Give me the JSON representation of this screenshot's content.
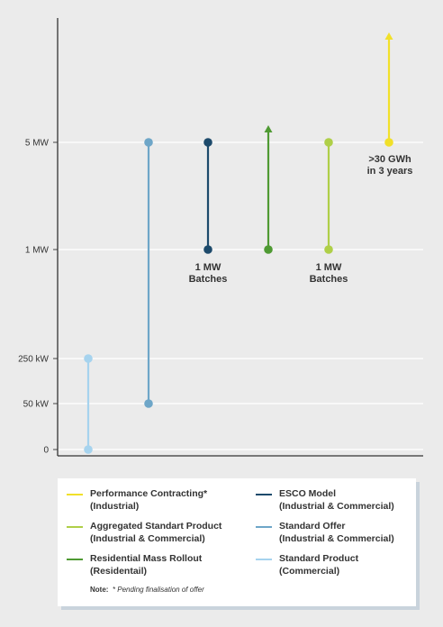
{
  "chart_data": {
    "type": "range",
    "y_axis": {
      "scale": "categorical-nonlinear",
      "ticks": [
        "0",
        "50 kW",
        "250 kW",
        "1 MW",
        "5 MW"
      ]
    },
    "grid": true,
    "series": [
      {
        "name": "Standard Product (Commercial)",
        "color": "#a6d3ee",
        "low": "0",
        "high": "250 kW",
        "arrow": false
      },
      {
        "name": "Standard Offer (Industrial & Commercial)",
        "color": "#6ea6c8",
        "low": "50 kW",
        "high": "5 MW",
        "arrow": false
      },
      {
        "name": "ESCO Model (Industrial & Commercial)",
        "color": "#1d4a6b",
        "low": "1 MW",
        "high": "5 MW",
        "arrow": false
      },
      {
        "name": "Residential Mass Rollout (Residentail)",
        "color": "#4f9a33",
        "low": "1 MW",
        "high": ">5 MW",
        "arrow": true
      },
      {
        "name": "Aggregated Standart Product (Industrial & Commercial)",
        "color": "#afcf48",
        "low": "1 MW",
        "high": "5 MW",
        "arrow": false
      },
      {
        "name": "Performance Contracting* (Industrial)",
        "color": "#f1e029",
        "low": "5 MW",
        "high": ">5 MW",
        "arrow": true
      }
    ],
    "annotations": [
      {
        "text": "1 MW\nBatches",
        "series": "ESCO Model (Industrial & Commercial)"
      },
      {
        "text": "1 MW\nBatches",
        "series": "Aggregated Standart Product (Industrial & Commercial)"
      },
      {
        "text": ">30 GWh\nin 3 years",
        "series": "Performance Contracting* (Industrial)"
      }
    ]
  },
  "legend": {
    "items": [
      {
        "label": "Performance Contracting*\n(Industrial)",
        "color": "#f1e029"
      },
      {
        "label": "ESCO Model\n(Industrial & Commercial)",
        "color": "#1d4a6b"
      },
      {
        "label": "Aggregated Standart Product\n(Industrial & Commercial)",
        "color": "#afcf48"
      },
      {
        "label": "Standard Offer\n(Industrial & Commercial)",
        "color": "#6ea6c8"
      },
      {
        "label": "Residential Mass Rollout\n(Residentail)",
        "color": "#4f9a33"
      },
      {
        "label": "Standard Product\n(Commercial)",
        "color": "#a6d3ee"
      }
    ],
    "note_label": "Note:",
    "note_text": "* Pending finalisation of offer"
  }
}
